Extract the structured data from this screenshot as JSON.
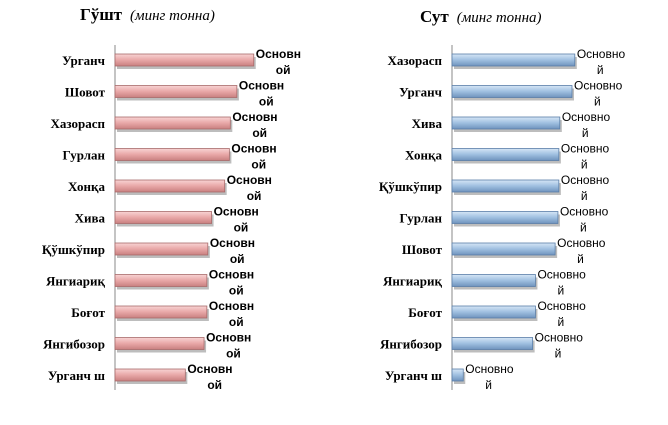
{
  "chart_data": [
    {
      "type": "bar",
      "orientation": "horizontal",
      "title": "Гўшт",
      "subtitle": "(минг тонна)",
      "color": "#e8a7a7",
      "categories": [
        "Урганч",
        "Шовот",
        "Хазорасп",
        "Гурлан",
        "Хонқа",
        "Хива",
        "Қўшкўпир",
        "Янгиариқ",
        "Боғот",
        "Янгибозор",
        "Урганч ш"
      ],
      "values": [
        148,
        130,
        123,
        122,
        117,
        103,
        99,
        98,
        98,
        95,
        75
      ],
      "data_labels": [
        "Основн ой",
        "Основн ой",
        "Основн ой",
        "Основн ой",
        "Основн ой",
        "Основн ой",
        "Основн ой",
        "Основн ой",
        "Основн ой",
        "Основн ой",
        "Основн ой"
      ],
      "xlim": [
        0,
        160
      ],
      "grid": false,
      "legend": "none"
    },
    {
      "type": "bar",
      "orientation": "horizontal",
      "title": "Сут",
      "subtitle": "(минг тонна)",
      "color": "#9fbfe0",
      "categories": [
        "Хазорасп",
        "Урганч",
        "Хива",
        "Хонқа",
        "Қўшкўпир",
        "Гурлан",
        "Шовот",
        "Янгиариқ",
        "Боғот",
        "Янгибозор",
        "Урганч ш"
      ],
      "values": [
        131,
        128,
        115,
        114,
        114,
        113,
        110,
        89,
        89,
        86,
        12
      ],
      "data_labels": [
        "Основно й",
        "Основно й",
        "Основно й",
        "Основно й",
        "Основно й",
        "Основно й",
        "Основно й",
        "Основно й",
        "Основно й",
        "Основно й",
        "Основно й"
      ],
      "xlim": [
        0,
        160
      ],
      "grid": false,
      "legend": "none"
    }
  ]
}
